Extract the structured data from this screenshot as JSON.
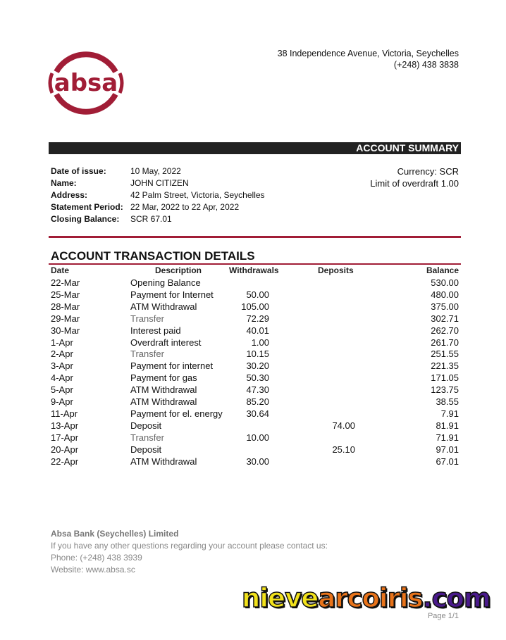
{
  "bank": {
    "logo_text": "absa",
    "brand_color": "#a11d36",
    "address": "38 Independence Avenue, Victoria, Seychelles",
    "phone": "(+248) 438 3838"
  },
  "summary": {
    "bar_title": "ACCOUNT SUMMARY",
    "fields": [
      {
        "label": "Date of issue:",
        "value": "10 May, 2022"
      },
      {
        "label": "Name:",
        "value": "JOHN CITIZEN"
      },
      {
        "label": "Address:",
        "value": "42 Palm Street, Victoria, Seychelles"
      },
      {
        "label": "Statement Period:",
        "value": "22 Mar, 2022 to 22 Apr, 2022"
      },
      {
        "label": "Closing Balance:",
        "value": "SCR 67.01"
      }
    ],
    "currency": "Currency: SCR",
    "overdraft": "Limit of overdraft 1.00"
  },
  "transactions": {
    "title": "ACCOUNT TRANSACTION DETAILS",
    "headers": {
      "date": "Date",
      "description": "Description",
      "withdrawals": "Withdrawals",
      "deposits": "Deposits",
      "balance": "Balance"
    },
    "rows": [
      {
        "date": "22-Mar",
        "description": "Opening Balance",
        "withdrawal": "",
        "deposit": "",
        "balance": "530.00"
      },
      {
        "date": "25-Mar",
        "description": "Payment for Internet",
        "withdrawal": "50.00",
        "deposit": "",
        "balance": "480.00"
      },
      {
        "date": "28-Mar",
        "description": "ATM Withdrawal",
        "withdrawal": "105.00",
        "deposit": "",
        "balance": "375.00"
      },
      {
        "date": "29-Mar",
        "description": "Transfer",
        "withdrawal": "72.29",
        "deposit": "",
        "balance": "302.71"
      },
      {
        "date": "30-Mar",
        "description": "Interest paid",
        "withdrawal": "40.01",
        "deposit": "",
        "balance": "262.70"
      },
      {
        "date": "1-Apr",
        "description": "Overdraft interest",
        "withdrawal": "1.00",
        "deposit": "",
        "balance": "261.70"
      },
      {
        "date": "2-Apr",
        "description": "Transfer",
        "withdrawal": "10.15",
        "deposit": "",
        "balance": "251.55"
      },
      {
        "date": "3-Apr",
        "description": "Payment for internet",
        "withdrawal": "30.20",
        "deposit": "",
        "balance": "221.35"
      },
      {
        "date": "4-Apr",
        "description": "Payment for gas",
        "withdrawal": "50.30",
        "deposit": "",
        "balance": "171.05"
      },
      {
        "date": "5-Apr",
        "description": "ATM Withdrawal",
        "withdrawal": "47.30",
        "deposit": "",
        "balance": "123.75"
      },
      {
        "date": "9-Apr",
        "description": "ATM Withdrawal",
        "withdrawal": "85.20",
        "deposit": "",
        "balance": "38.55"
      },
      {
        "date": "11-Apr",
        "description": "Payment for el. energy",
        "withdrawal": "30.64",
        "deposit": "",
        "balance": "7.91"
      },
      {
        "date": "13-Apr",
        "description": "Deposit",
        "withdrawal": "",
        "deposit": "74.00",
        "balance": "81.91"
      },
      {
        "date": "17-Apr",
        "description": "Transfer",
        "withdrawal": "10.00",
        "deposit": "",
        "balance": "71.91"
      },
      {
        "date": "20-Apr",
        "description": "Deposit",
        "withdrawal": "",
        "deposit": "25.10",
        "balance": "97.01"
      },
      {
        "date": "22-Apr",
        "description": "ATM Withdrawal",
        "withdrawal": "30.00",
        "deposit": "",
        "balance": "67.01"
      }
    ]
  },
  "footer": {
    "company": "Absa Bank (Seychelles) Limited",
    "contact_text": "If you have any other questions regarding your account please contact us:",
    "phone": "Phone: (+248) 438 3939",
    "website": "Website: www.absa.sc",
    "page": "Page 1/1"
  },
  "watermark": {
    "part1": "nieve",
    "part2": "arcoiris",
    "part3": ".com",
    "colors": [
      "#f2e21b",
      "#e8731a",
      "#4a1a8c"
    ]
  }
}
